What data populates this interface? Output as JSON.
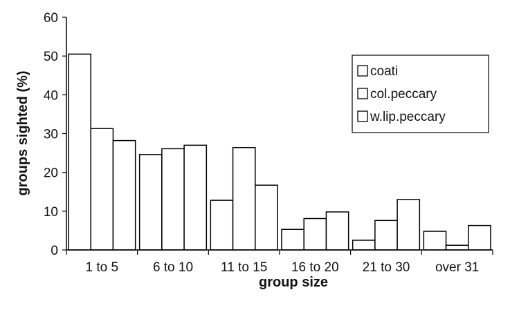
{
  "chart_data": {
    "type": "bar",
    "title": "",
    "xlabel": "group size",
    "ylabel": "groups sighted (%)",
    "ylim": [
      0,
      60
    ],
    "yticks": [
      0,
      10,
      20,
      30,
      40,
      50,
      60
    ],
    "grid": false,
    "legend_position": "top-right",
    "categories": [
      "1 to 5",
      "6 to 10",
      "11 to 15",
      "16 to 20",
      "21 to 30",
      "over 31"
    ],
    "series": [
      {
        "name": "coati",
        "values": [
          50.5,
          24.6,
          12.8,
          5.3,
          2.5,
          4.8
        ]
      },
      {
        "name": "col.peccary",
        "values": [
          31.3,
          26.1,
          26.4,
          8.1,
          7.6,
          1.2
        ]
      },
      {
        "name": "w.lip.peccary",
        "values": [
          28.2,
          27.0,
          16.7,
          9.8,
          13.0,
          6.3
        ]
      }
    ],
    "bar_fill": "#ffffff",
    "bar_stroke": "#000000"
  }
}
